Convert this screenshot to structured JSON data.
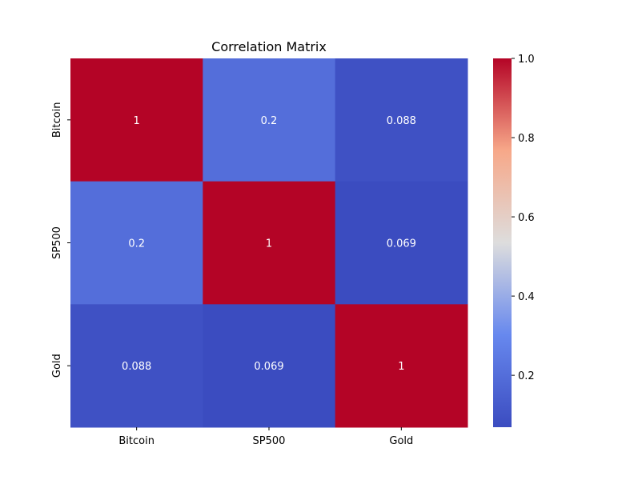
{
  "chart_data": {
    "type": "heatmap",
    "title": "Correlation Matrix",
    "xlabel": "",
    "ylabel": "",
    "x_categories": [
      "Bitcoin",
      "SP500",
      "Gold"
    ],
    "y_categories": [
      "Bitcoin",
      "SP500",
      "Gold"
    ],
    "values": [
      [
        1.0,
        0.2,
        0.088
      ],
      [
        0.2,
        1.0,
        0.069
      ],
      [
        0.088,
        0.069,
        1.0
      ]
    ],
    "annotations": [
      [
        "1",
        "0.2",
        "0.088"
      ],
      [
        "0.2",
        "1",
        "0.069"
      ],
      [
        "0.088",
        "0.069",
        "1"
      ]
    ],
    "colormap": "coolwarm",
    "colorbar": {
      "vmin": 0.069,
      "vmax": 1.0,
      "ticks": [
        0.2,
        0.4,
        0.6,
        0.8,
        1.0
      ],
      "tick_labels": [
        "0.2",
        "0.4",
        "0.6",
        "0.8",
        "1.0"
      ]
    }
  },
  "colormap_stops": [
    {
      "t": 0.0,
      "color": "#3b4cc0"
    },
    {
      "t": 0.25,
      "color": "#6788ee"
    },
    {
      "t": 0.5,
      "color": "#dddddd"
    },
    {
      "t": 0.75,
      "color": "#f7a889"
    },
    {
      "t": 1.0,
      "color": "#b40426"
    }
  ]
}
